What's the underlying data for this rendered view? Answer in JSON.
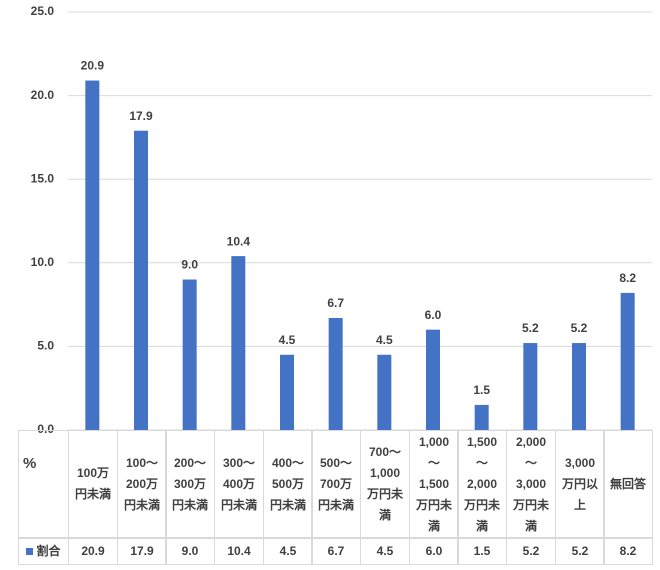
{
  "chart_data": {
    "type": "bar",
    "y_label": "%",
    "categories": [
      "100万円未満",
      "100～200万円未満",
      "200～300万円未満",
      "300～400万円未満",
      "400～500万円未満",
      "500～700万円未満",
      "700～1,000万円未満",
      "1,000～1,500万円未満",
      "1,500～2,000万円未満",
      "2,000～3,000万円未満",
      "3,000万円以上",
      "無回答"
    ],
    "series": [
      {
        "name": "割合",
        "color": "#4472c4",
        "values": [
          20.9,
          17.9,
          9.0,
          10.4,
          4.5,
          6.7,
          4.5,
          6.0,
          1.5,
          5.2,
          5.2,
          8.2
        ],
        "value_labels": [
          "20.9",
          "17.9",
          "9.0",
          "10.4",
          "4.5",
          "6.7",
          "4.5",
          "6.0",
          "1.5",
          "5.2",
          "5.2",
          "8.2"
        ]
      }
    ],
    "ylim": [
      0,
      25
    ],
    "yticks": [
      {
        "value": 0,
        "label": "0.0"
      },
      {
        "value": 5,
        "label": "5.0"
      },
      {
        "value": 10,
        "label": "10.0"
      },
      {
        "value": 15,
        "label": "15.0"
      },
      {
        "value": 20,
        "label": "20.0"
      },
      {
        "value": 25,
        "label": "25.0"
      }
    ],
    "grid": true
  }
}
